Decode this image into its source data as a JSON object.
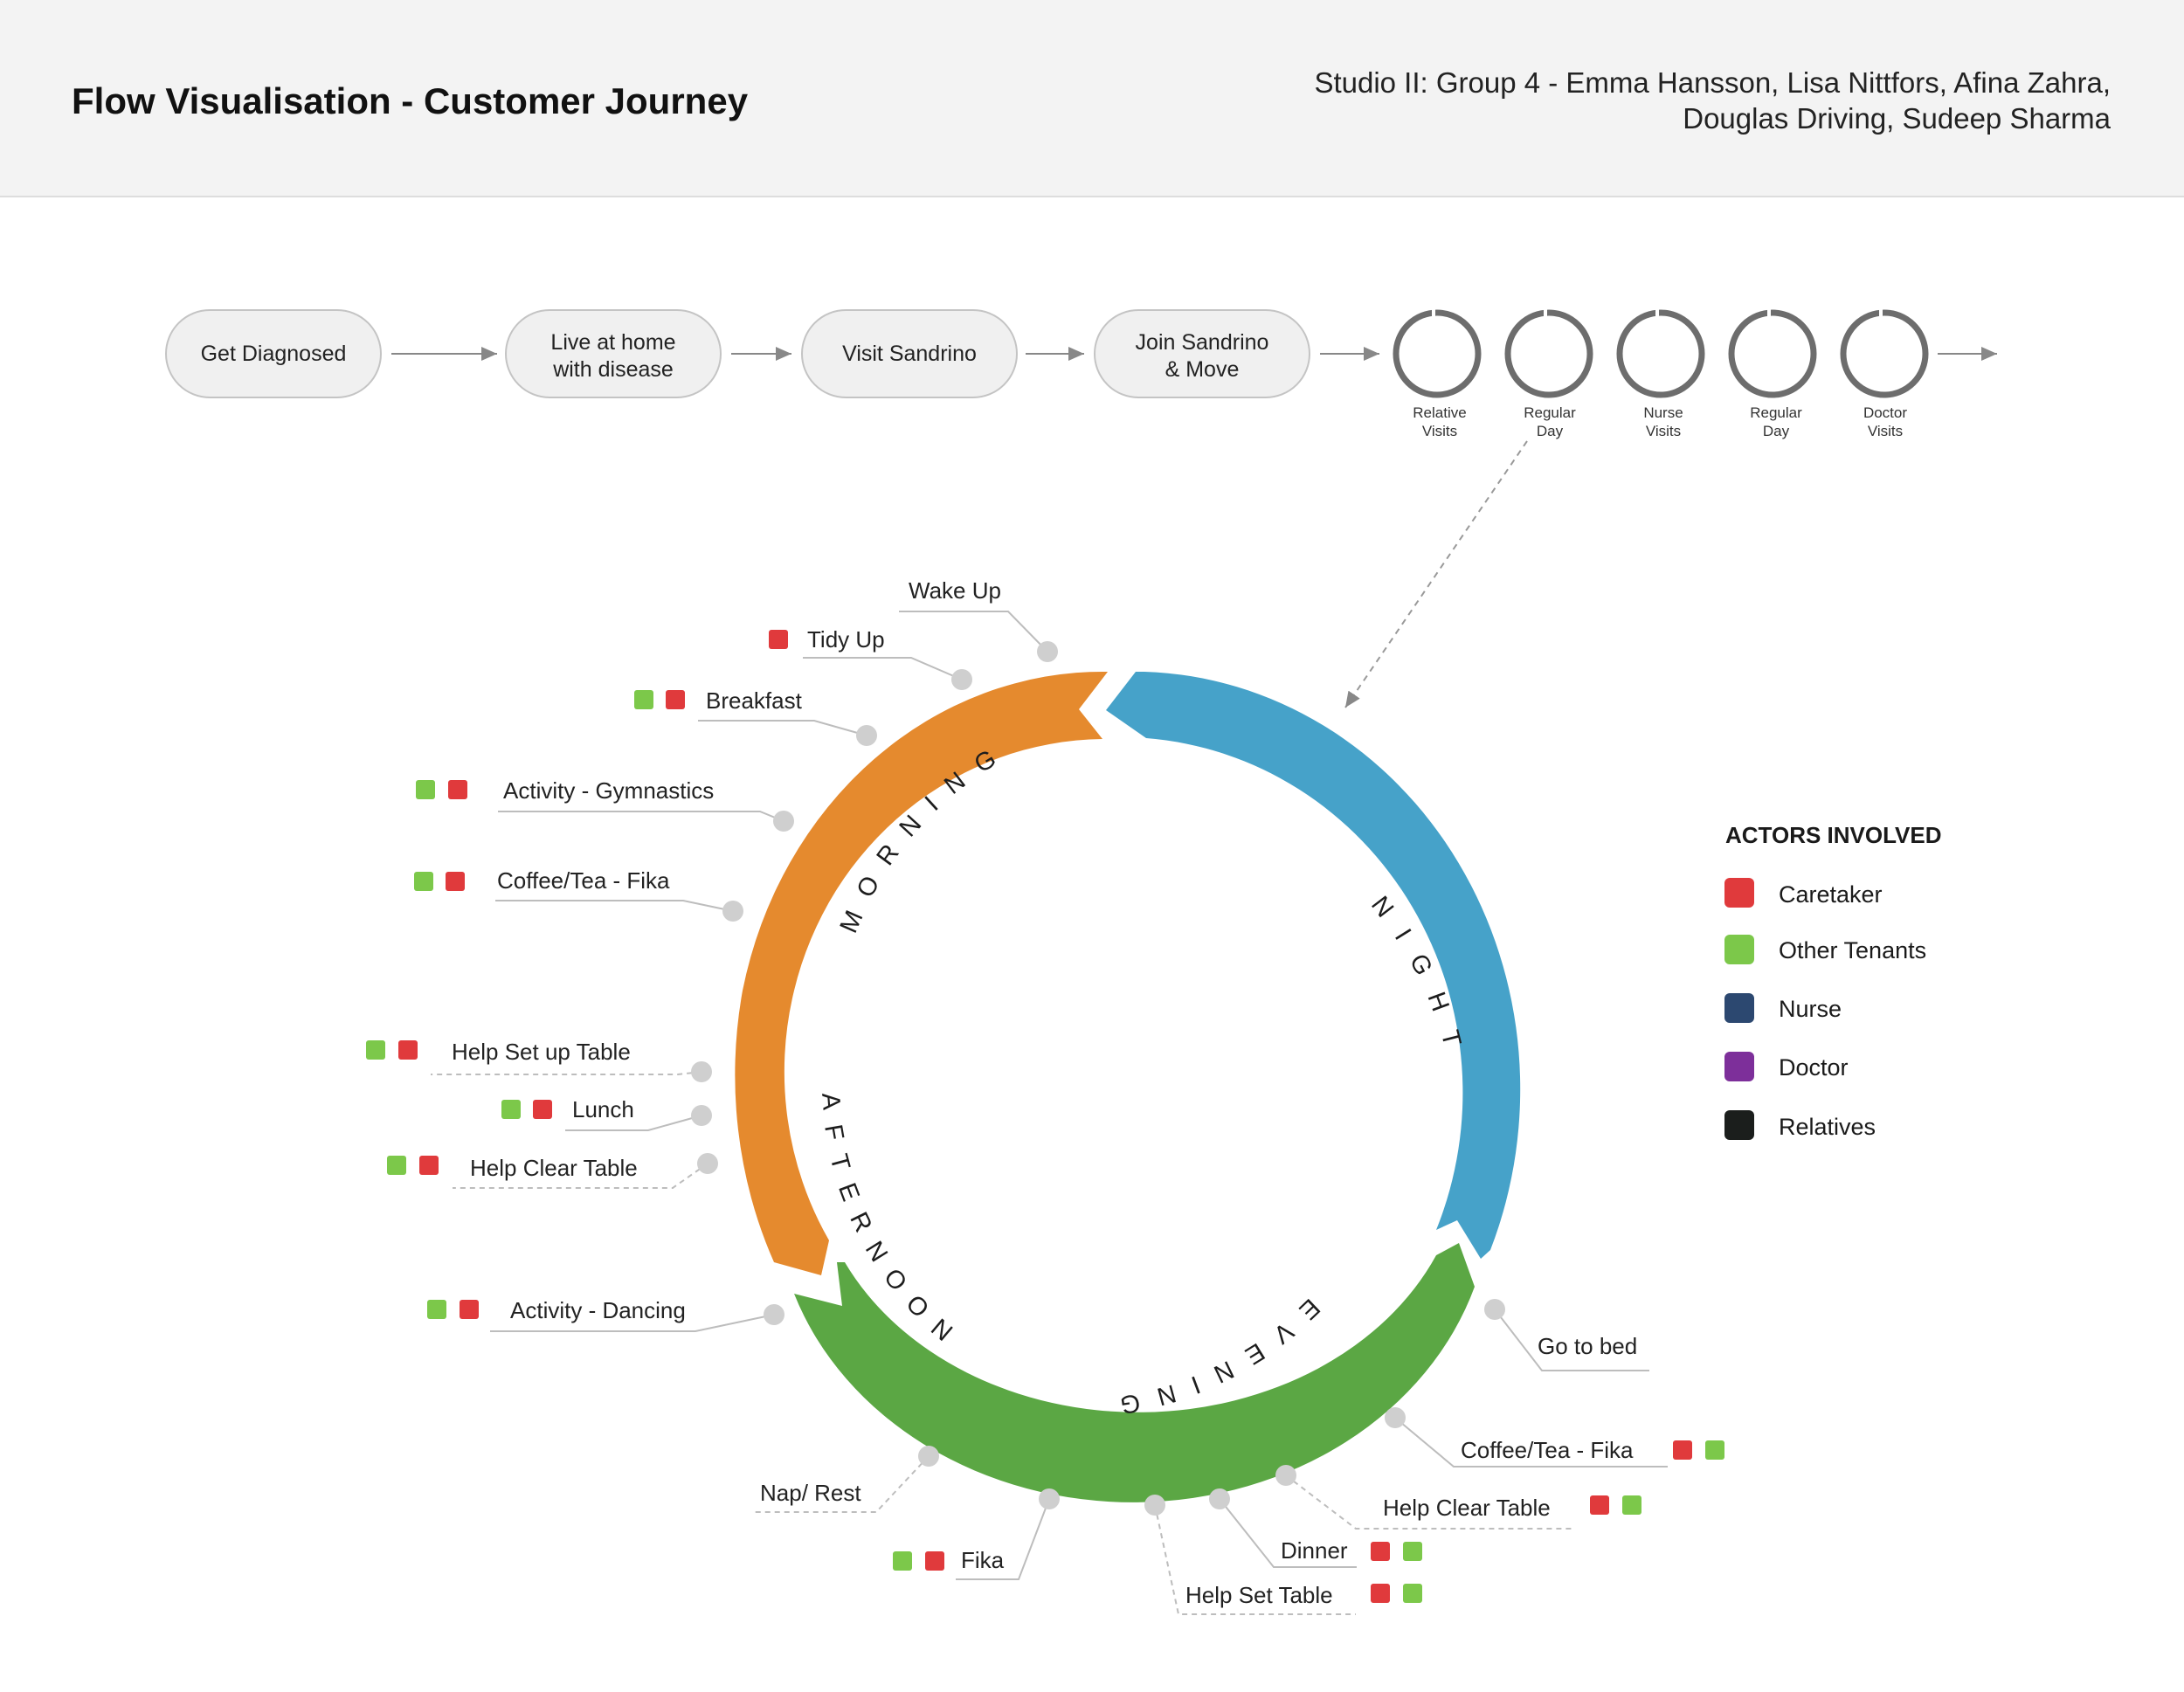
{
  "header": {
    "title": "Flow Visualisation - Customer Journey",
    "credits_line1": "Studio II: Group 4 - Emma Hansson, Lisa Nittfors, Afina Zahra,",
    "credits_line2": "Douglas Driving, Sudeep Sharma"
  },
  "journey": {
    "steps": [
      {
        "line1": "Get Diagnosed",
        "line2": ""
      },
      {
        "line1": "Live at home",
        "line2": "with disease"
      },
      {
        "line1": "Visit Sandrino",
        "line2": ""
      },
      {
        "line1": "Join Sandrino",
        "line2": "& Move"
      }
    ],
    "cycles": [
      {
        "line1": "Relative",
        "line2": "Visits"
      },
      {
        "line1": "Regular",
        "line2": "Day"
      },
      {
        "line1": "Nurse",
        "line2": "Visits"
      },
      {
        "line1": "Regular",
        "line2": "Day"
      },
      {
        "line1": "Doctor",
        "line2": "Visits"
      }
    ]
  },
  "day_cycle": {
    "phases": [
      {
        "label": "MORNING",
        "color": "#e58a2e"
      },
      {
        "label": "NIGHT",
        "color": "#46a2c9"
      },
      {
        "label": "EVENING",
        "color": "#5ba744"
      },
      {
        "label": "AFTERNOON",
        "color": "#e58a2e"
      }
    ],
    "activities": [
      {
        "label": "Wake Up",
        "actors": []
      },
      {
        "label": "Tidy Up",
        "actors": [
          "caretaker"
        ]
      },
      {
        "label": "Breakfast",
        "actors": [
          "other_tenants",
          "caretaker"
        ]
      },
      {
        "label": "Activity - Gymnastics",
        "actors": [
          "other_tenants",
          "caretaker"
        ]
      },
      {
        "label": "Coffee/Tea - Fika",
        "actors": [
          "other_tenants",
          "caretaker"
        ]
      },
      {
        "label": "Help Set up Table",
        "actors": [
          "other_tenants",
          "caretaker"
        ]
      },
      {
        "label": "Lunch",
        "actors": [
          "other_tenants",
          "caretaker"
        ]
      },
      {
        "label": "Help Clear Table",
        "actors": [
          "other_tenants",
          "caretaker"
        ]
      },
      {
        "label": "Activity - Dancing",
        "actors": [
          "other_tenants",
          "caretaker"
        ]
      },
      {
        "label": "Nap/ Rest",
        "actors": []
      },
      {
        "label": "Fika",
        "actors": [
          "other_tenants",
          "caretaker"
        ]
      },
      {
        "label": "Help Set Table",
        "actors": [
          "caretaker",
          "other_tenants"
        ]
      },
      {
        "label": "Dinner",
        "actors": [
          "caretaker",
          "other_tenants"
        ]
      },
      {
        "label": "Help Clear Table",
        "actors": [
          "caretaker",
          "other_tenants"
        ]
      },
      {
        "label": "Coffee/Tea - Fika",
        "actors": [
          "caretaker",
          "other_tenants"
        ]
      },
      {
        "label": "Go to bed",
        "actors": []
      }
    ]
  },
  "legend": {
    "title": "ACTORS INVOLVED",
    "items": [
      {
        "key": "caretaker",
        "label": "Caretaker",
        "color": "#e03a3c"
      },
      {
        "key": "other_tenants",
        "label": "Other Tenants",
        "color": "#7cc84a"
      },
      {
        "key": "nurse",
        "label": "Nurse",
        "color": "#2c4870"
      },
      {
        "key": "doctor",
        "label": "Doctor",
        "color": "#7d2f9a"
      },
      {
        "key": "relatives",
        "label": "Relatives",
        "color": "#1b1e1c"
      }
    ]
  }
}
